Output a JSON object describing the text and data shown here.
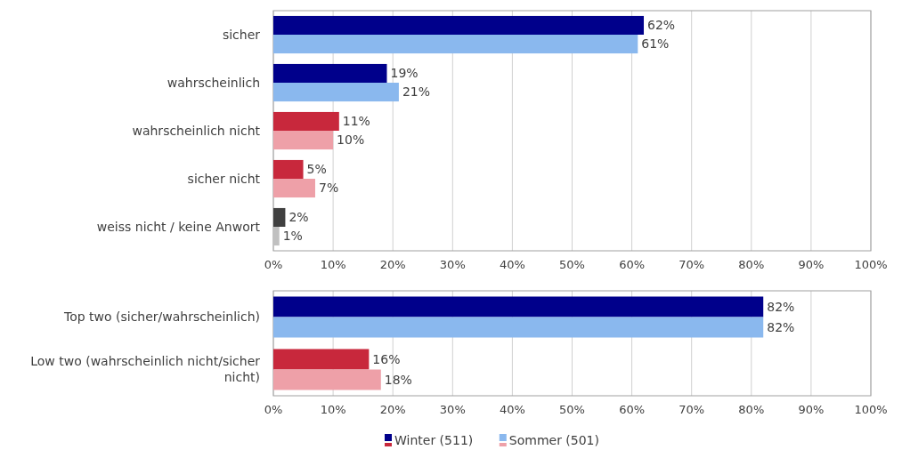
{
  "chart_data": [
    {
      "type": "bar",
      "orientation": "horizontal",
      "categories": [
        "sicher",
        "wahrscheinlich",
        "wahrscheinlich nicht",
        "sicher nicht",
        "weiss nicht / keine Anwort"
      ],
      "series": [
        {
          "colors": [
            "#00008b",
            "#00008b",
            "#c8283c",
            "#c8283c",
            "#404040"
          ],
          "values": [
            62,
            19,
            11,
            5,
            2
          ],
          "value_labels": [
            "62%",
            "19%",
            "11%",
            "5%",
            "2%"
          ]
        },
        {
          "colors": [
            "#8ab8ee",
            "#8ab8ee",
            "#eea0a8",
            "#eea0a8",
            "#c0c0c0"
          ],
          "values": [
            61,
            21,
            10,
            7,
            1
          ],
          "value_labels": [
            "61%",
            "21%",
            "10%",
            "7%",
            "1%"
          ]
        }
      ],
      "xlim": [
        0,
        100
      ],
      "xticks": [
        {
          "value": 0,
          "label": "0%"
        },
        {
          "value": 10,
          "label": "10%"
        },
        {
          "value": 20,
          "label": "20%"
        },
        {
          "value": 30,
          "label": "30%"
        },
        {
          "value": 40,
          "label": "40%"
        },
        {
          "value": 50,
          "label": "50%"
        },
        {
          "value": 60,
          "label": "60%"
        },
        {
          "value": 70,
          "label": "70%"
        },
        {
          "value": 80,
          "label": "80%"
        },
        {
          "value": 90,
          "label": "90%"
        },
        {
          "value": 100,
          "label": "100%"
        }
      ],
      "grid": "x"
    },
    {
      "type": "bar",
      "orientation": "horizontal",
      "categories": [
        "Top two (sicher/wahrscheinlich)",
        "Low two (wahrscheinlich nicht/sicher nicht)"
      ],
      "series": [
        {
          "name": "Winter (511)",
          "color": "#00008b",
          "colors": [
            "#00008b",
            "#c8283c"
          ],
          "values": [
            82,
            16
          ],
          "value_labels": [
            "82%",
            "16%"
          ]
        },
        {
          "name": "Sommer (501)",
          "color": "#8ab8ee",
          "colors": [
            "#8ab8ee",
            "#eea0a8"
          ],
          "values": [
            82,
            18
          ],
          "value_labels": [
            "82%",
            "18%"
          ]
        }
      ],
      "xlim": [
        0,
        100
      ],
      "xticks": [
        {
          "value": 0,
          "label": "0%"
        },
        {
          "value": 10,
          "label": "10%"
        },
        {
          "value": 20,
          "label": "20%"
        },
        {
          "value": 30,
          "label": "30%"
        },
        {
          "value": 40,
          "label": "40%"
        },
        {
          "value": 50,
          "label": "50%"
        },
        {
          "value": 60,
          "label": "60%"
        },
        {
          "value": 70,
          "label": "70%"
        },
        {
          "value": 80,
          "label": "80%"
        },
        {
          "value": 90,
          "label": "90%"
        },
        {
          "value": 100,
          "label": "100%"
        }
      ],
      "grid": "x",
      "legend": "bottom"
    }
  ]
}
